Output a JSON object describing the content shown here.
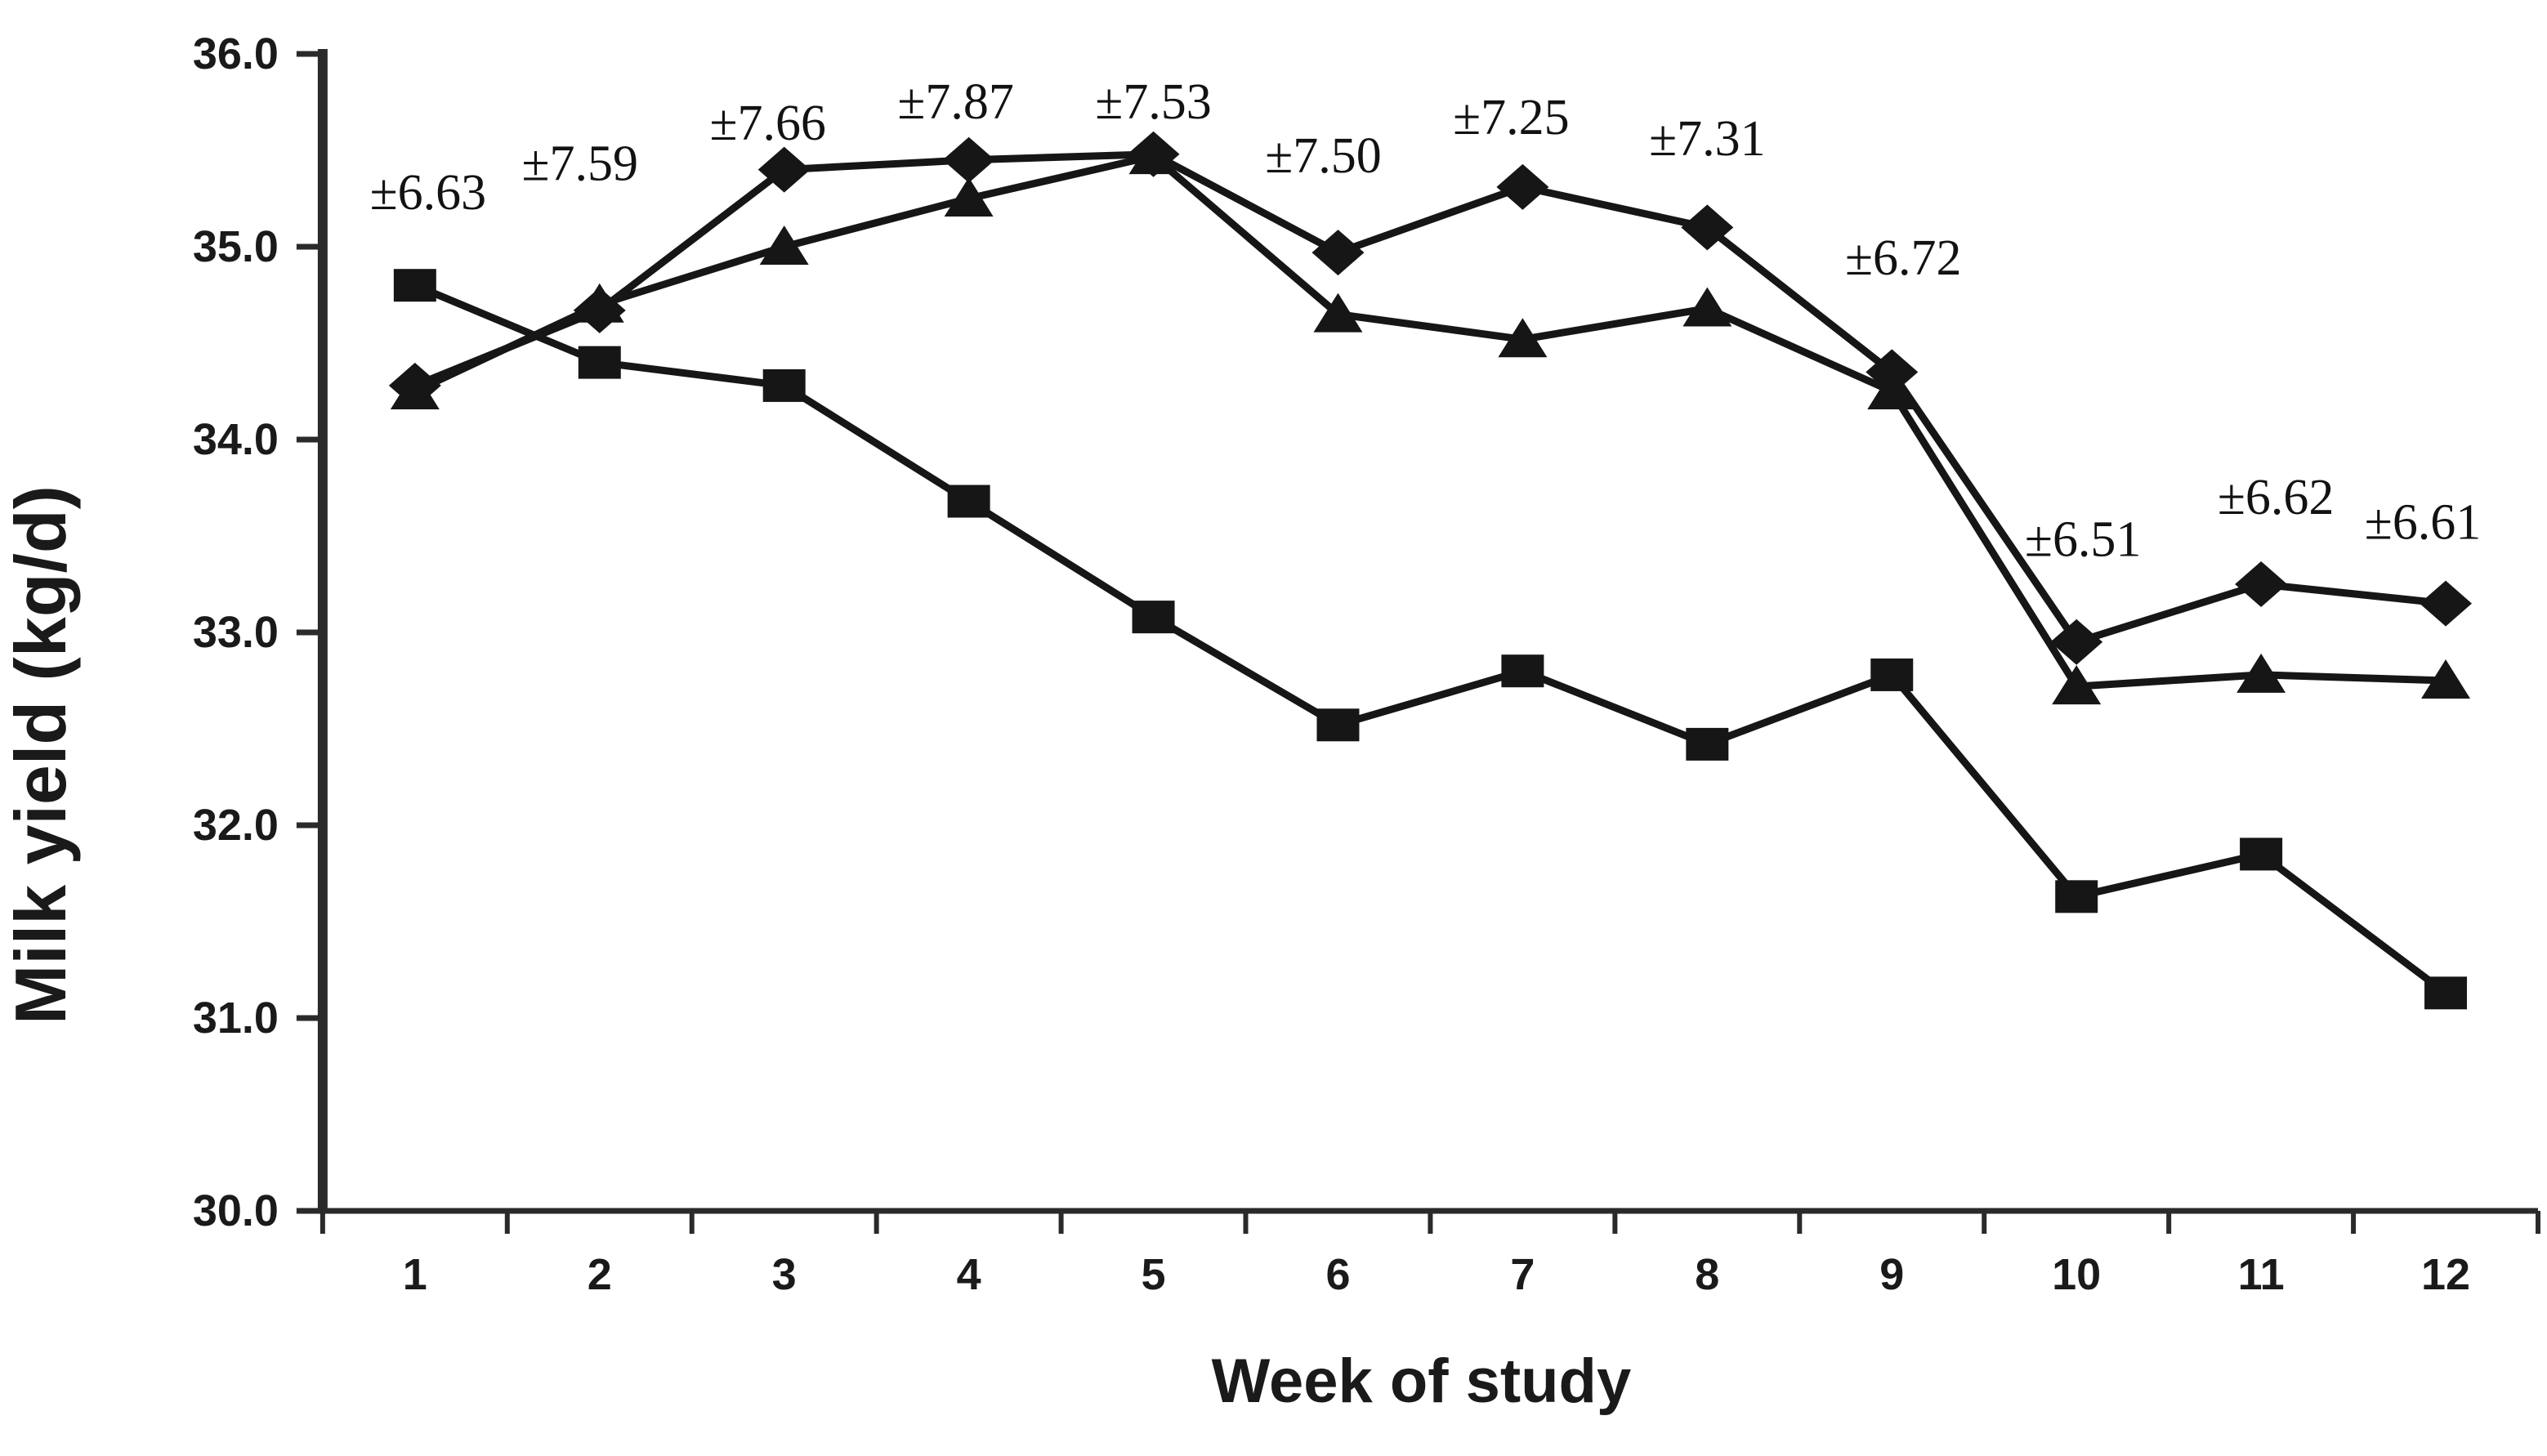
{
  "page": {
    "background": "#ffffff"
  },
  "chart_data": {
    "type": "line",
    "title": "",
    "xlabel": "Week of study",
    "ylabel": "Milk yield (kg/d)",
    "x_categories": [
      "1",
      "2",
      "3",
      "4",
      "5",
      "6",
      "7",
      "8",
      "9",
      "10",
      "11",
      "12"
    ],
    "ylim": [
      30.0,
      36.0
    ],
    "ytick_step": 1.0,
    "ytick_labels": [
      "36.0",
      "35.0",
      "34.0",
      "33.0",
      "32.0",
      "31.0",
      "30.0"
    ],
    "grid": false,
    "legend": "none",
    "ink_color": "#161616",
    "axis_color": "#2a2a2a",
    "series": [
      {
        "name": "squares",
        "marker": "square",
        "values": [
          34.8,
          34.4,
          34.28,
          33.68,
          33.08,
          32.52,
          32.8,
          32.42,
          32.78,
          31.63,
          31.85,
          31.13
        ]
      },
      {
        "name": "diamonds",
        "marker": "diamond",
        "values": [
          34.28,
          34.67,
          35.4,
          35.45,
          35.48,
          34.97,
          35.31,
          35.1,
          34.35,
          32.95,
          33.25,
          33.15
        ]
      },
      {
        "name": "triangles",
        "marker": "triangle",
        "values": [
          34.25,
          34.7,
          35.0,
          35.25,
          35.47,
          34.65,
          34.52,
          34.68,
          34.25,
          32.72,
          32.78,
          32.75
        ]
      }
    ],
    "annotations": [
      {
        "week": 1,
        "text": "±6.63",
        "y": 35.28,
        "dx": 8
      },
      {
        "week": 2,
        "text": "±7.59",
        "y": 35.43,
        "dx": -12
      },
      {
        "week": 3,
        "text": "±7.66",
        "y": 35.64,
        "dx": -10
      },
      {
        "week": 4,
        "text": "±7.87",
        "y": 35.75,
        "dx": -8
      },
      {
        "week": 5,
        "text": "±7.53",
        "y": 35.75,
        "dx": 0
      },
      {
        "week": 6,
        "text": "±7.50",
        "y": 35.47,
        "dx": -9
      },
      {
        "week": 7,
        "text": "±7.25",
        "y": 35.67,
        "dx": -7
      },
      {
        "week": 8,
        "text": "±7.31",
        "y": 35.56,
        "dx": 0
      },
      {
        "week": 9,
        "text": "±6.72",
        "y": 34.94,
        "dx": 7
      },
      {
        "week": 10,
        "text": "±6.51",
        "y": 33.48,
        "dx": 4
      },
      {
        "week": 11,
        "text": "±6.62",
        "y": 33.7,
        "dx": 9
      },
      {
        "week": 12,
        "text": "±6.61",
        "y": 33.57,
        "dx": -14
      }
    ]
  }
}
